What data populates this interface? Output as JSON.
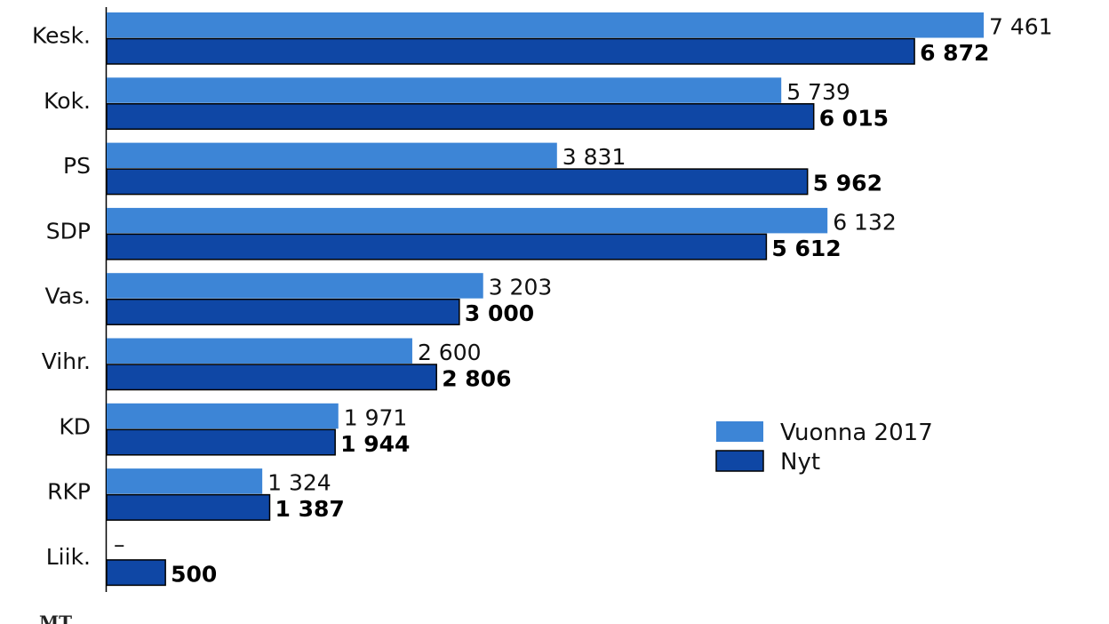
{
  "chart_data": {
    "type": "bar",
    "orientation": "horizontal",
    "categories": [
      "Kesk.",
      "Kok.",
      "PS",
      "SDP",
      "Vas.",
      "Vihr.",
      "KD",
      "RKP",
      "Liik."
    ],
    "series": [
      {
        "name": "Vuonna 2017",
        "color": "#3d85d6",
        "values": [
          7461,
          5739,
          3831,
          6132,
          3203,
          2600,
          1971,
          1324,
          null
        ],
        "labels": [
          "7 461",
          "5 739",
          "3 831",
          "6 132",
          "3 203",
          "2 600",
          "1 971",
          "1 324",
          "–"
        ]
      },
      {
        "name": "Nyt",
        "color": "#0f47a5",
        "values": [
          6872,
          6015,
          5962,
          5612,
          3000,
          2806,
          1944,
          1387,
          500
        ],
        "labels": [
          "6 872",
          "6 015",
          "5 962",
          "5 612",
          "3 000",
          "2 806",
          "1 944",
          "1 387",
          "500"
        ]
      }
    ],
    "xlim": [
      0,
      7461
    ],
    "grid": false,
    "legend_position": "right"
  },
  "footer": {
    "logo": "MT"
  }
}
